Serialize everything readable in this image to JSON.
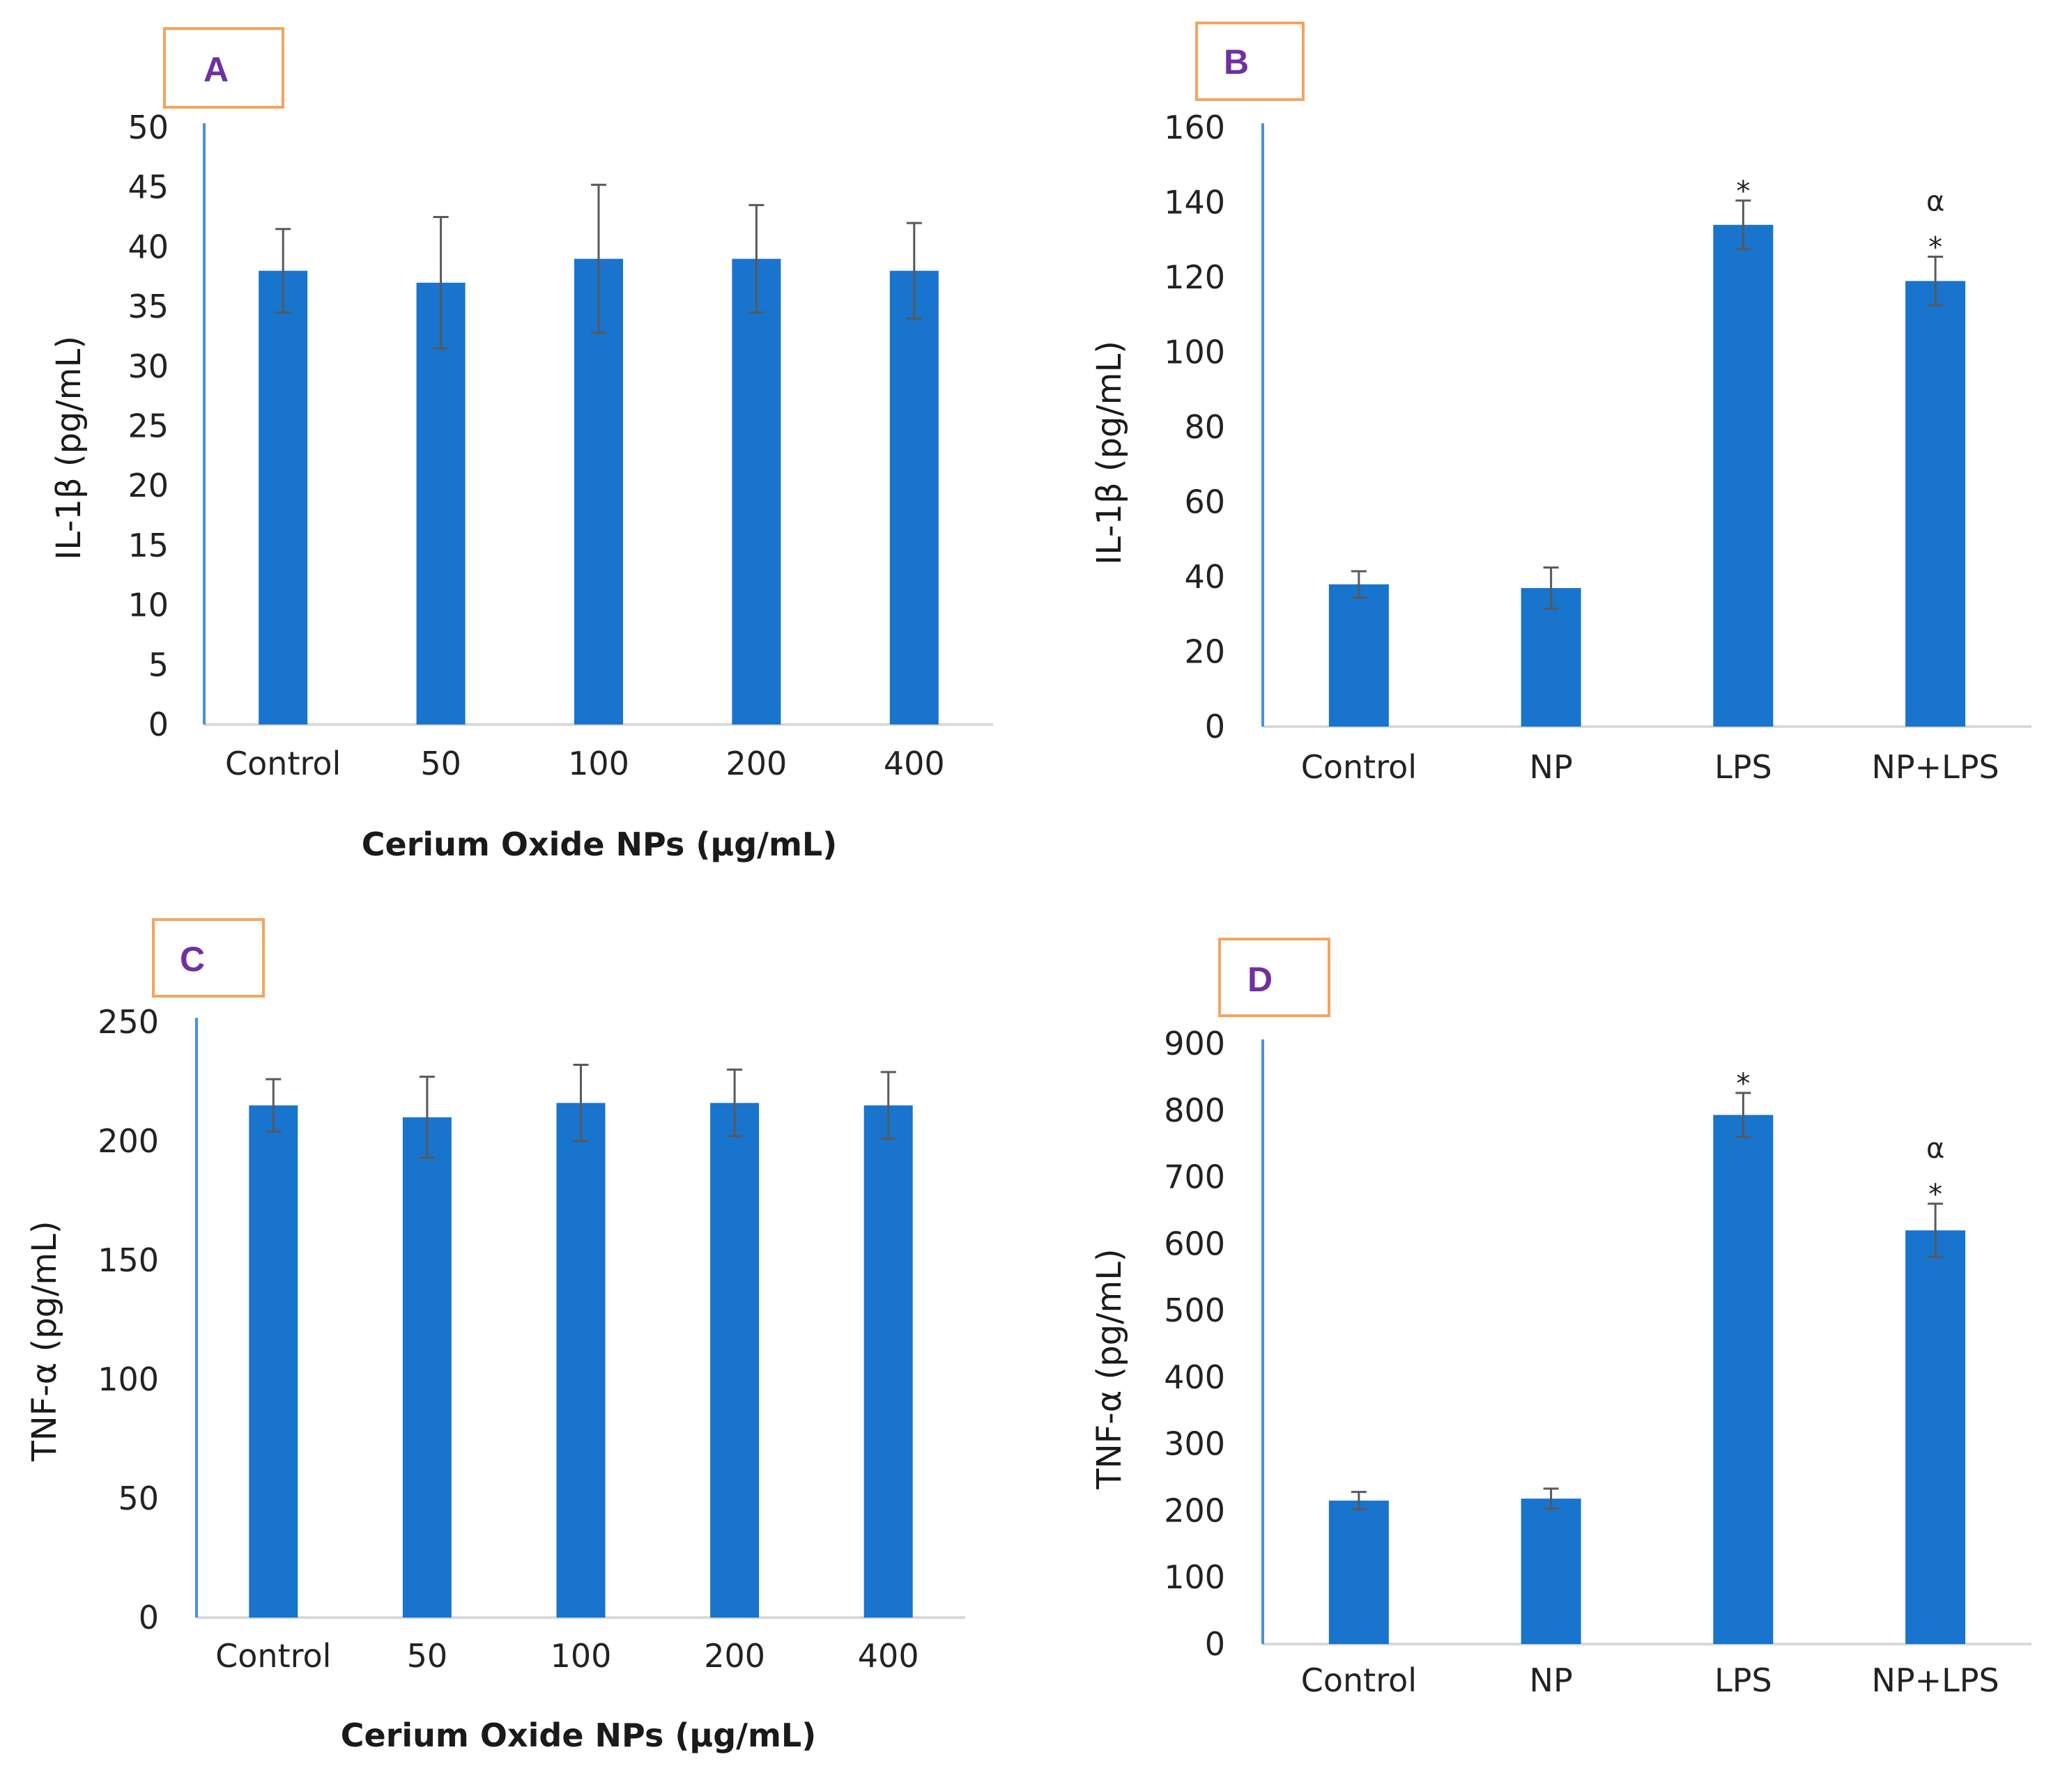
{
  "colors": {
    "bar": "#1874cd",
    "axis": "#4a90d9",
    "baseline": "#d9d9d9",
    "error_bar": "#595959",
    "label_box": "#f4a460",
    "label_text": "#7030a0"
  },
  "chart_data": [
    {
      "panel": "A",
      "type": "bar",
      "categories": [
        "Control",
        "50",
        "100",
        "200",
        "400"
      ],
      "values": [
        38,
        37,
        39,
        39,
        38
      ],
      "errors": [
        3.5,
        5.5,
        6.2,
        4.5,
        4
      ],
      "ylim": [
        0,
        50
      ],
      "yticks": [
        0,
        5,
        10,
        15,
        20,
        25,
        30,
        35,
        40,
        45,
        50
      ],
      "ylabel": "IL-1β (pg/mL)",
      "xlabel": "Cerium Oxide NPs (μg/mL)",
      "annotations": [
        null,
        null,
        null,
        null,
        null
      ]
    },
    {
      "panel": "B",
      "type": "bar",
      "categories": [
        "Control",
        "NP",
        "LPS",
        "NP+LPS"
      ],
      "values": [
        38,
        37,
        134,
        119
      ],
      "errors": [
        3.5,
        5.5,
        6.5,
        6.5
      ],
      "ylim": [
        0,
        160
      ],
      "yticks": [
        0,
        20,
        40,
        60,
        80,
        100,
        120,
        140,
        160
      ],
      "ylabel": "IL-1β (pg/mL)",
      "xlabel": "",
      "annotations": [
        null,
        null,
        [
          "*"
        ],
        [
          "α",
          "*"
        ]
      ]
    },
    {
      "panel": "C",
      "type": "bar",
      "categories": [
        "Control",
        "50",
        "100",
        "200",
        "400"
      ],
      "values": [
        215,
        210,
        216,
        216,
        215
      ],
      "errors": [
        11,
        17,
        16,
        14,
        14
      ],
      "ylim": [
        0,
        250
      ],
      "yticks": [
        0,
        50,
        100,
        150,
        200,
        250
      ],
      "ylabel": "TNF-α (pg/mL)",
      "xlabel": "Cerium Oxide NPs (μg/mL)",
      "annotations": [
        null,
        null,
        null,
        null,
        null
      ]
    },
    {
      "panel": "D",
      "type": "bar",
      "categories": [
        "Control",
        "NP",
        "LPS",
        "NP+LPS"
      ],
      "values": [
        215,
        218,
        793,
        620
      ],
      "errors": [
        13,
        15,
        33,
        40
      ],
      "ylim": [
        0,
        900
      ],
      "yticks": [
        0,
        100,
        200,
        300,
        400,
        500,
        600,
        700,
        800,
        900
      ],
      "ylabel": "TNF-α (pg/mL)",
      "xlabel": "",
      "annotations": [
        null,
        null,
        [
          "*"
        ],
        [
          "α",
          "*"
        ]
      ]
    }
  ]
}
